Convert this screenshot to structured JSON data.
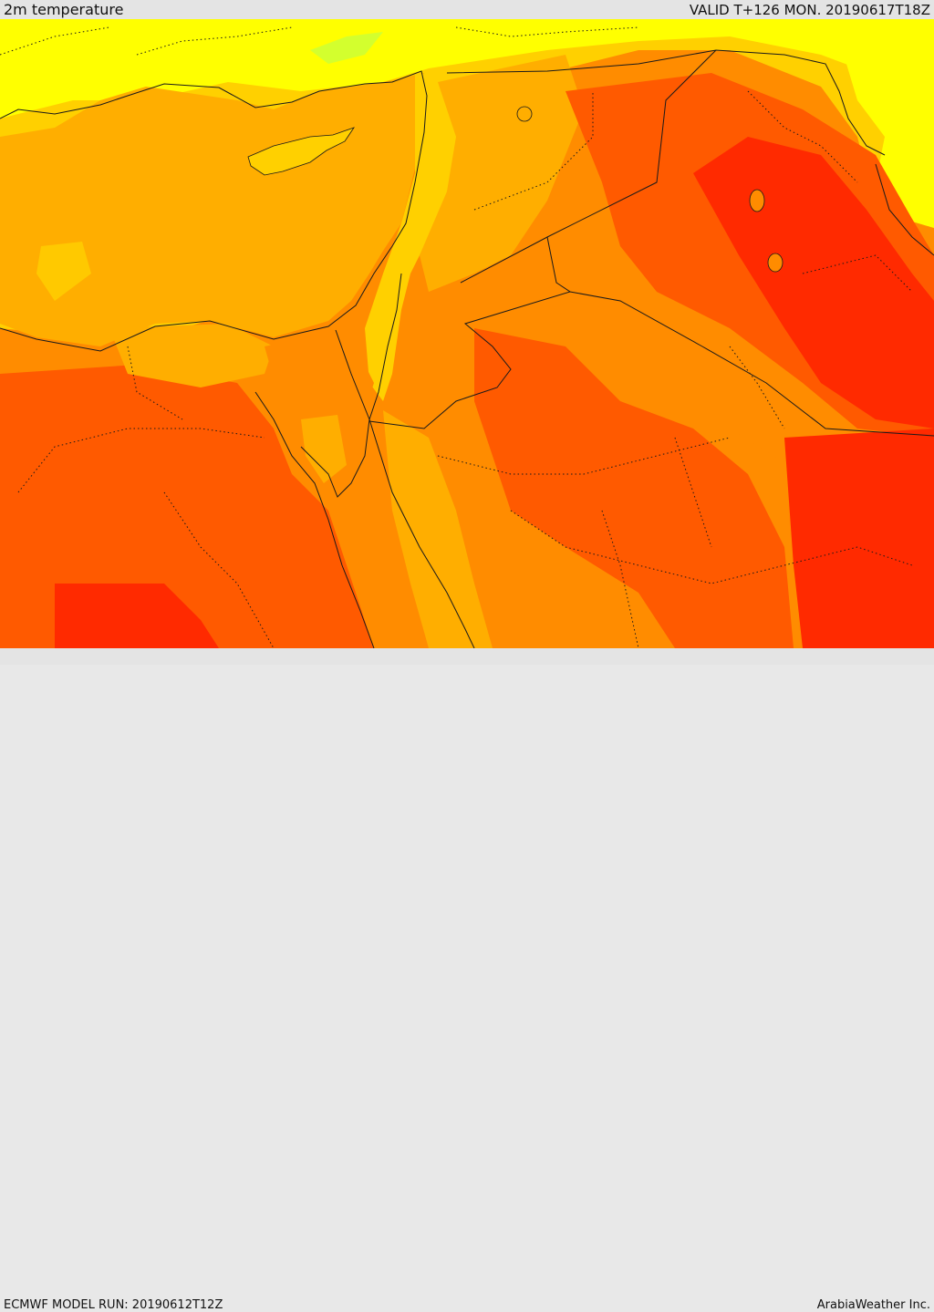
{
  "header": {
    "title": "2m temperature",
    "valid": "VALID T+126 MON. 20190617T18Z"
  },
  "footer": {
    "model_run": "ECMWF MODEL RUN: 20190612T12Z",
    "credit": "ArabiaWeather Inc."
  },
  "map": {
    "region": "Eastern Mediterranean / Levant / Arabian Peninsula",
    "colors": {
      "cool": "#ffff00",
      "mild": "#ffd000",
      "warm": "#ffae00",
      "hot": "#ff8c00",
      "very_hot": "#ff5a00",
      "extreme": "#ff2a00",
      "highland": "#c8ff3a",
      "border": "#1a1a1a"
    }
  }
}
